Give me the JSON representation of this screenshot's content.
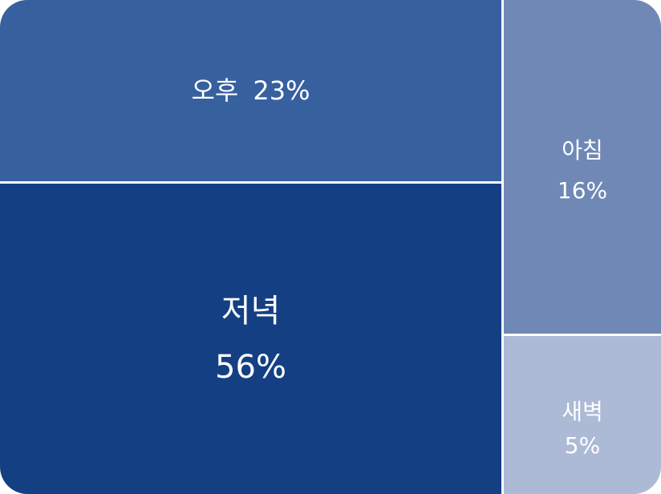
{
  "chart_data": {
    "type": "treemap",
    "unit": "%",
    "grid": false,
    "legend": "none",
    "series": [
      {
        "values": [
          {
            "category": "오후",
            "value": 23,
            "value_label": "23%",
            "color": "#37609E"
          },
          {
            "category": "저녁",
            "value": 56,
            "value_label": "56%",
            "color": "#143F83"
          },
          {
            "category": "아침",
            "value": 16,
            "value_label": "16%",
            "color": "#6F88B5"
          },
          {
            "category": "새벽",
            "value": 5,
            "value_label": "5%",
            "color": "#ADBAD6"
          }
        ]
      }
    ]
  }
}
